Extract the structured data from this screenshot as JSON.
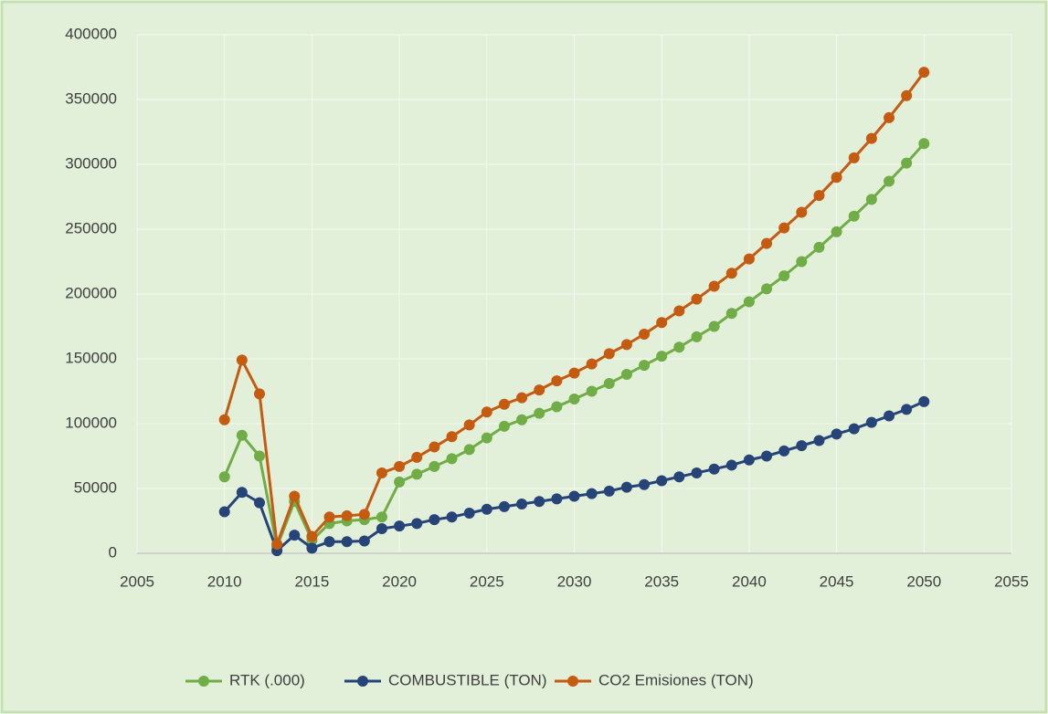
{
  "chart_data": {
    "type": "line",
    "x": [
      2010,
      2011,
      2012,
      2013,
      2014,
      2015,
      2016,
      2017,
      2018,
      2019,
      2020,
      2021,
      2022,
      2023,
      2024,
      2025,
      2026,
      2027,
      2028,
      2029,
      2030,
      2031,
      2032,
      2033,
      2034,
      2035,
      2036,
      2037,
      2038,
      2039,
      2040,
      2041,
      2042,
      2043,
      2044,
      2045,
      2046,
      2047,
      2048,
      2049,
      2050
    ],
    "series": [
      {
        "name": "RTK (.000)",
        "color": "#70ad47",
        "values": [
          59000,
          91000,
          75000,
          5000,
          40000,
          10000,
          23000,
          25000,
          26000,
          28000,
          55000,
          61000,
          67000,
          73000,
          80000,
          89000,
          98000,
          103000,
          108000,
          113000,
          119000,
          125000,
          131000,
          138000,
          145000,
          152000,
          159000,
          167000,
          175000,
          185000,
          194000,
          204000,
          214000,
          225000,
          236000,
          248000,
          260000,
          273000,
          287000,
          301000,
          316000
        ]
      },
      {
        "name": "COMBUSTIBLE (TON)",
        "color": "#264478",
        "values": [
          32000,
          47000,
          39000,
          2000,
          14000,
          4000,
          9000,
          9000,
          9500,
          19000,
          21000,
          23000,
          26000,
          28000,
          31000,
          34000,
          36000,
          38000,
          40000,
          42000,
          44000,
          46000,
          48000,
          51000,
          53000,
          56000,
          59000,
          62000,
          65000,
          68000,
          72000,
          75000,
          79000,
          83000,
          87000,
          92000,
          96000,
          101000,
          106000,
          111000,
          117000
        ]
      },
      {
        "name": "CO2 Emisiones (TON)",
        "color": "#c55a11",
        "values": [
          103000,
          149000,
          123000,
          7000,
          44000,
          13000,
          28000,
          29000,
          30000,
          62000,
          67000,
          74000,
          82000,
          90000,
          99000,
          109000,
          115000,
          120000,
          126000,
          133000,
          139000,
          146000,
          154000,
          161000,
          169000,
          178000,
          187000,
          196000,
          206000,
          216000,
          227000,
          239000,
          251000,
          263000,
          276000,
          290000,
          305000,
          320000,
          336000,
          353000,
          371000
        ]
      }
    ],
    "xlim": [
      2005,
      2055
    ],
    "xticks": [
      2005,
      2010,
      2015,
      2020,
      2025,
      2030,
      2035,
      2040,
      2045,
      2050,
      2055
    ],
    "ylim": [
      0,
      400000
    ],
    "yticks": [
      0,
      50000,
      100000,
      150000,
      200000,
      250000,
      300000,
      350000,
      400000
    ],
    "grid": true,
    "legend": "bottom"
  }
}
